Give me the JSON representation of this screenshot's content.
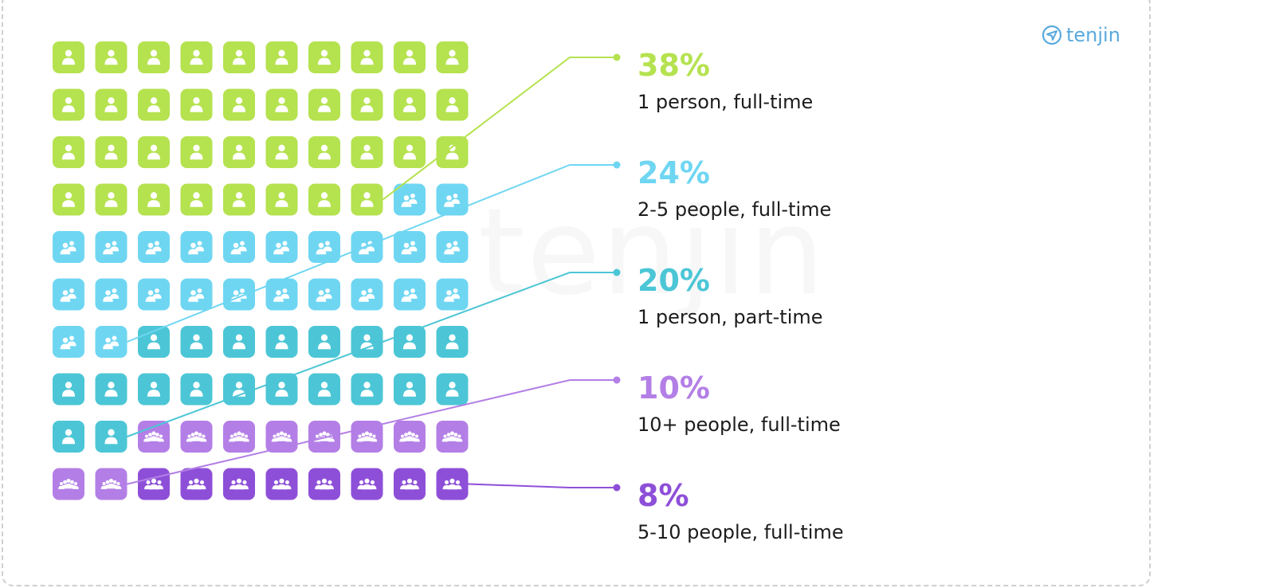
{
  "brand": {
    "logo_text": "tenjin",
    "logo_color": "#5aa9dd",
    "watermark": "tenjin"
  },
  "chart_data": {
    "type": "waffle",
    "grid": {
      "rows": 10,
      "cols": 10
    },
    "segments": [
      {
        "label": "1 person, full-time",
        "percent_text": "38%",
        "value": 38,
        "color": "#b5e24f",
        "icon": "person-icon"
      },
      {
        "label": "2-5 people, full-time",
        "percent_text": "24%",
        "value": 24,
        "color": "#6fd6f2",
        "icon": "two-people-icon"
      },
      {
        "label": "1 person, part-time",
        "percent_text": "20%",
        "value": 20,
        "color": "#4cc6d6",
        "icon": "person-icon"
      },
      {
        "label": "10+ people, full-time",
        "percent_text": "10%",
        "value": 10,
        "color": "#b37fe6",
        "icon": "crowd-icon"
      },
      {
        "label": "5-10 people, full-time",
        "percent_text": "8%",
        "value": 8,
        "color": "#8e4fd8",
        "icon": "group-icon"
      }
    ]
  }
}
